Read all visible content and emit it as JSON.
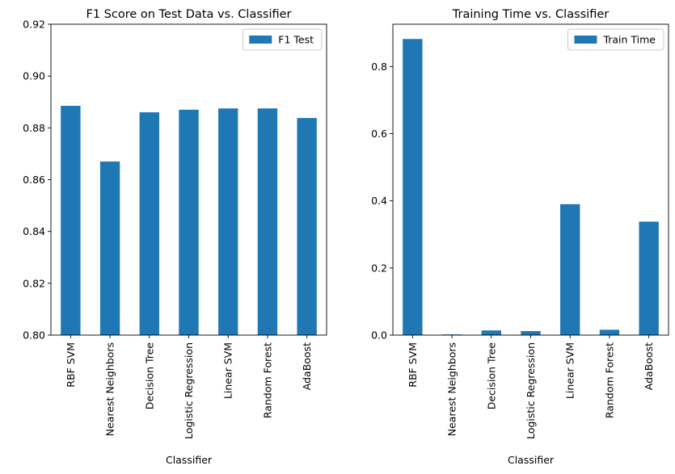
{
  "chart_data": [
    {
      "type": "bar",
      "title": "F1 Score on Test Data vs. Classifier",
      "xlabel": "Classifier",
      "ylabel": "",
      "categories": [
        "RBF SVM",
        "Nearest Neighbors",
        "Decision Tree",
        "Logistic Regression",
        "Linear SVM",
        "Random Forest",
        "AdaBoost"
      ],
      "series": [
        {
          "name": "F1 Test",
          "values": [
            0.8885,
            0.867,
            0.886,
            0.887,
            0.8875,
            0.8875,
            0.8838
          ],
          "color": "#1f77b4"
        }
      ],
      "ylim": [
        0.8,
        0.92
      ],
      "yticks": [
        0.8,
        0.82,
        0.84,
        0.86,
        0.88,
        0.9,
        0.92
      ],
      "ytick_labels": [
        "0.80",
        "0.82",
        "0.84",
        "0.86",
        "0.88",
        "0.90",
        "0.92"
      ],
      "legend_position": "top-right",
      "grid": false
    },
    {
      "type": "bar",
      "title": "Training Time vs. Classifier",
      "xlabel": "Classifier",
      "ylabel": "",
      "categories": [
        "RBF SVM",
        "Nearest Neighbors",
        "Decision Tree",
        "Logistic Regression",
        "Linear SVM",
        "Random Forest",
        "AdaBoost"
      ],
      "series": [
        {
          "name": "Train Time",
          "values": [
            0.882,
            0.002,
            0.014,
            0.012,
            0.39,
            0.016,
            0.338
          ],
          "color": "#1f77b4"
        }
      ],
      "ylim": [
        0,
        0.926
      ],
      "yticks": [
        0.0,
        0.2,
        0.4,
        0.6,
        0.8
      ],
      "ytick_labels": [
        "0.0",
        "0.2",
        "0.4",
        "0.6",
        "0.8"
      ],
      "legend_position": "top-right",
      "grid": false
    }
  ]
}
